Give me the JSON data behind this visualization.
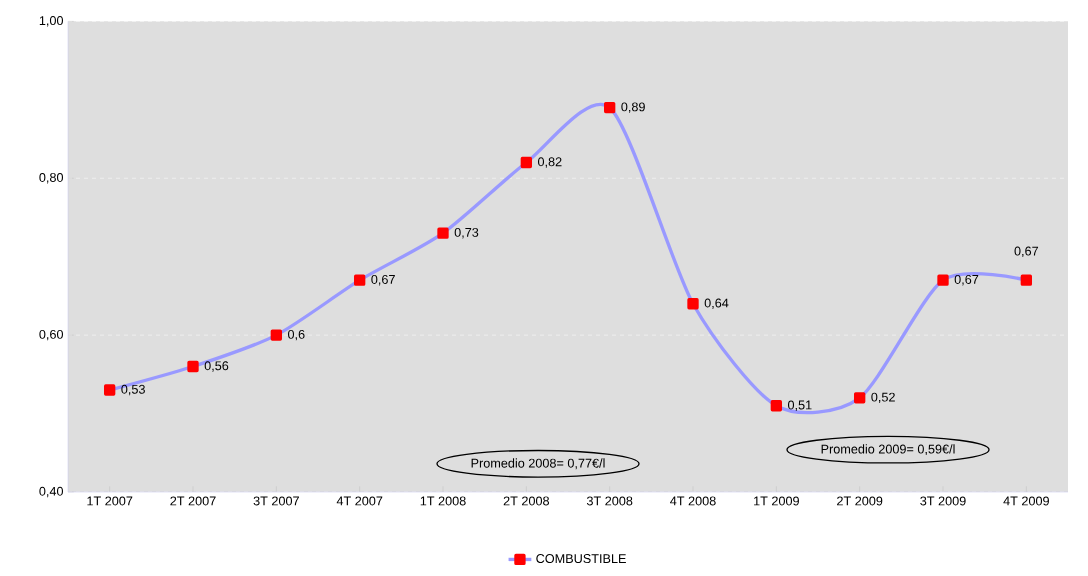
{
  "chart_data": {
    "type": "line",
    "categories": [
      "1T 2007",
      "2T 2007",
      "3T 2007",
      "4T 2007",
      "1T 2008",
      "2T 2008",
      "3T 2008",
      "4T 2008",
      "1T 2009",
      "2T 2009",
      "3T 2009",
      "4T 2009"
    ],
    "series": [
      {
        "name": "COMBUSTIBLE",
        "color": "#9999ff",
        "values": [
          0.53,
          0.56,
          0.6,
          0.67,
          0.73,
          0.82,
          0.89,
          0.64,
          0.51,
          0.52,
          0.67,
          0.67
        ],
        "value_labels": [
          "0,53",
          "0,56",
          "0,6",
          "0,67",
          "0,73",
          "0,82",
          "0,89",
          "0,64",
          "0,51",
          "0,52",
          "0,67",
          "0,67"
        ]
      }
    ],
    "ylim": [
      0.4,
      1.0
    ],
    "yticks": [
      {
        "value": 0.4,
        "label": "0,40"
      },
      {
        "value": 0.6,
        "label": "0,60"
      },
      {
        "value": 0.8,
        "label": "0,80"
      },
      {
        "value": 1.0,
        "label": "1,00"
      }
    ],
    "grid": "y",
    "marker": "square",
    "legend": "bottom",
    "annotations": [
      "Promedio 2008= 0,77€/l",
      "Promedio 2009= 0,59€/l"
    ]
  }
}
